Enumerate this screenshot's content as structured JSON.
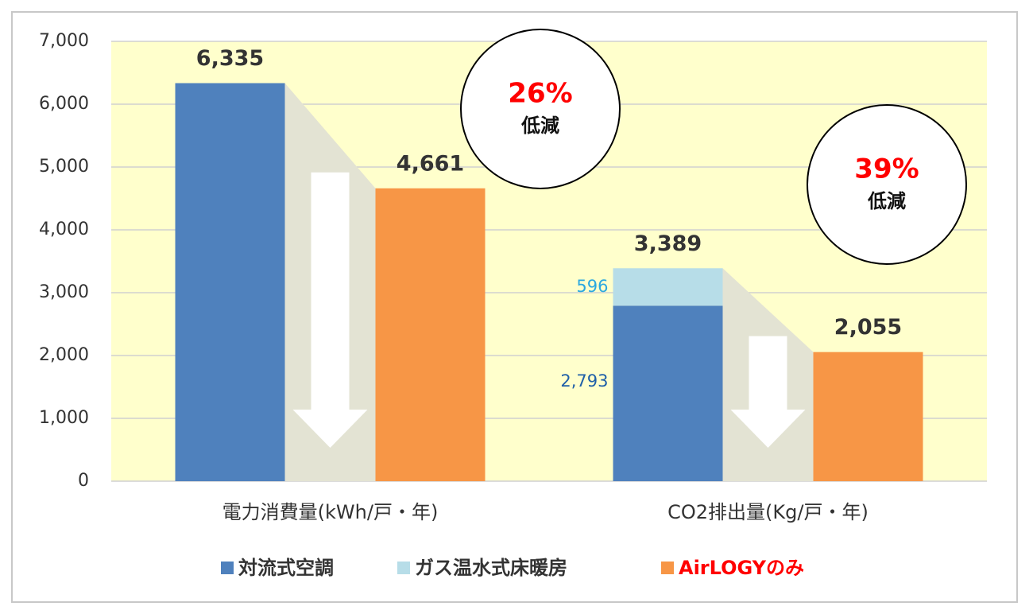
{
  "chart_data": {
    "type": "bar",
    "categories": [
      "電力消費量(kWh/戸・年)",
      "CO2排出量(Kg/戸・年)"
    ],
    "series": [
      {
        "name": "対流式空調",
        "color": "#4f81bd",
        "values": [
          6335,
          2793
        ],
        "value_labels": [
          null,
          "2,793"
        ],
        "label_color": "#1f5fa8"
      },
      {
        "name": "ガス温水式床暖房",
        "color": "#b7dde8",
        "values": [
          null,
          596
        ],
        "value_labels": [
          null,
          "596"
        ],
        "label_color": "#2aa8e0"
      },
      {
        "name": "AirLOGYのみ",
        "color": "#f79646",
        "values": [
          4661,
          2055
        ],
        "value_labels": [
          "4,661",
          "2,055"
        ],
        "legend_color": "#ff0000"
      }
    ],
    "totals": [
      6335,
      3389
    ],
    "total_labels": [
      "6,335",
      "3,389"
    ],
    "annotations": [
      {
        "text": "26%",
        "sub": "低減"
      },
      {
        "text": "39%",
        "sub": "低減"
      }
    ],
    "ylim": [
      0,
      7000
    ],
    "yticks": [
      0,
      {
        "value": 1000,
        "label": "1,000"
      },
      {
        "value": 2000,
        "label": "2,000"
      },
      {
        "value": 3000,
        "label": "3,000"
      },
      {
        "value": 4000,
        "label": "4,000"
      },
      {
        "value": 5000,
        "label": "5,000"
      },
      {
        "value": 6000,
        "label": "6,000"
      },
      {
        "value": 7000,
        "label": "7,000"
      }
    ],
    "grid": true,
    "background": "#ffffcc"
  }
}
